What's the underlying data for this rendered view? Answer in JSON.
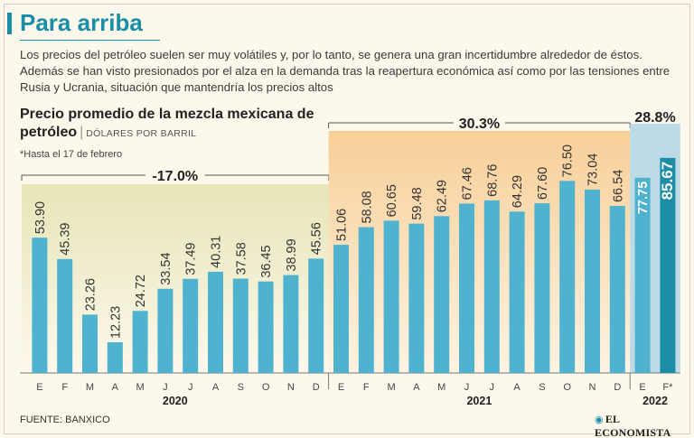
{
  "header": {
    "title": "Para arriba",
    "intro": "Los precios del petróleo suelen ser muy volátiles y, por lo tanto, se genera una gran incertidumbre alrededor de éstos. Además se han visto presionados por el alza en la demanda tras la reapertura económica así como por las tensiones entre Rusia y Ucrania, situación que mantendría los precios altos"
  },
  "footnote": "*Hasta el 17 de febrero",
  "source": "FUENTE: BANXICO",
  "logo": "EL ECONOMISTA",
  "colors": {
    "bar": "#4fb3cf",
    "bar_highlight": "#1b8ea6",
    "bg_2020": "#e6e6b8",
    "bg_2021": "#f8cf98",
    "bg_2022": "#bcdbe6",
    "accent": "#1b8ea6"
  },
  "chart_data": {
    "type": "bar",
    "title": "Precio promedio de la mezcla mexicana de petróleo",
    "subtitle": "DÓLARES POR BARRIL",
    "categories": [
      "E",
      "F",
      "M",
      "A",
      "M",
      "J",
      "J",
      "A",
      "S",
      "O",
      "N",
      "D",
      "E",
      "F",
      "M",
      "A",
      "M",
      "J",
      "J",
      "A",
      "S",
      "O",
      "N",
      "D",
      "E",
      "F*"
    ],
    "values": [
      53.9,
      45.39,
      23.26,
      12.23,
      24.72,
      33.54,
      37.49,
      40.31,
      37.58,
      36.45,
      38.99,
      45.56,
      51.06,
      58.08,
      60.65,
      59.48,
      62.49,
      67.46,
      68.76,
      64.29,
      67.6,
      76.5,
      73.04,
      66.54,
      77.75,
      85.67
    ],
    "value_labels": [
      "53.90",
      "45.39",
      "23.26",
      "12.23",
      "24.72",
      "33.54",
      "37.49",
      "40.31",
      "37.58",
      "36.45",
      "38.99",
      "45.56",
      "51.06",
      "58.08",
      "60.65",
      "59.48",
      "62.49",
      "67.46",
      "68.76",
      "64.29",
      "67.60",
      "76.50",
      "73.04",
      "66.54",
      "77.75",
      "85.67"
    ],
    "groups": [
      {
        "year": "2020",
        "change": "-17.0%",
        "start": 0,
        "end": 11
      },
      {
        "year": "2021",
        "change": "30.3%",
        "start": 12,
        "end": 23
      },
      {
        "year": "2022",
        "change": "28.8%",
        "start": 24,
        "end": 25
      }
    ],
    "highlight_index": 25,
    "ylim": [
      0,
      90
    ]
  }
}
